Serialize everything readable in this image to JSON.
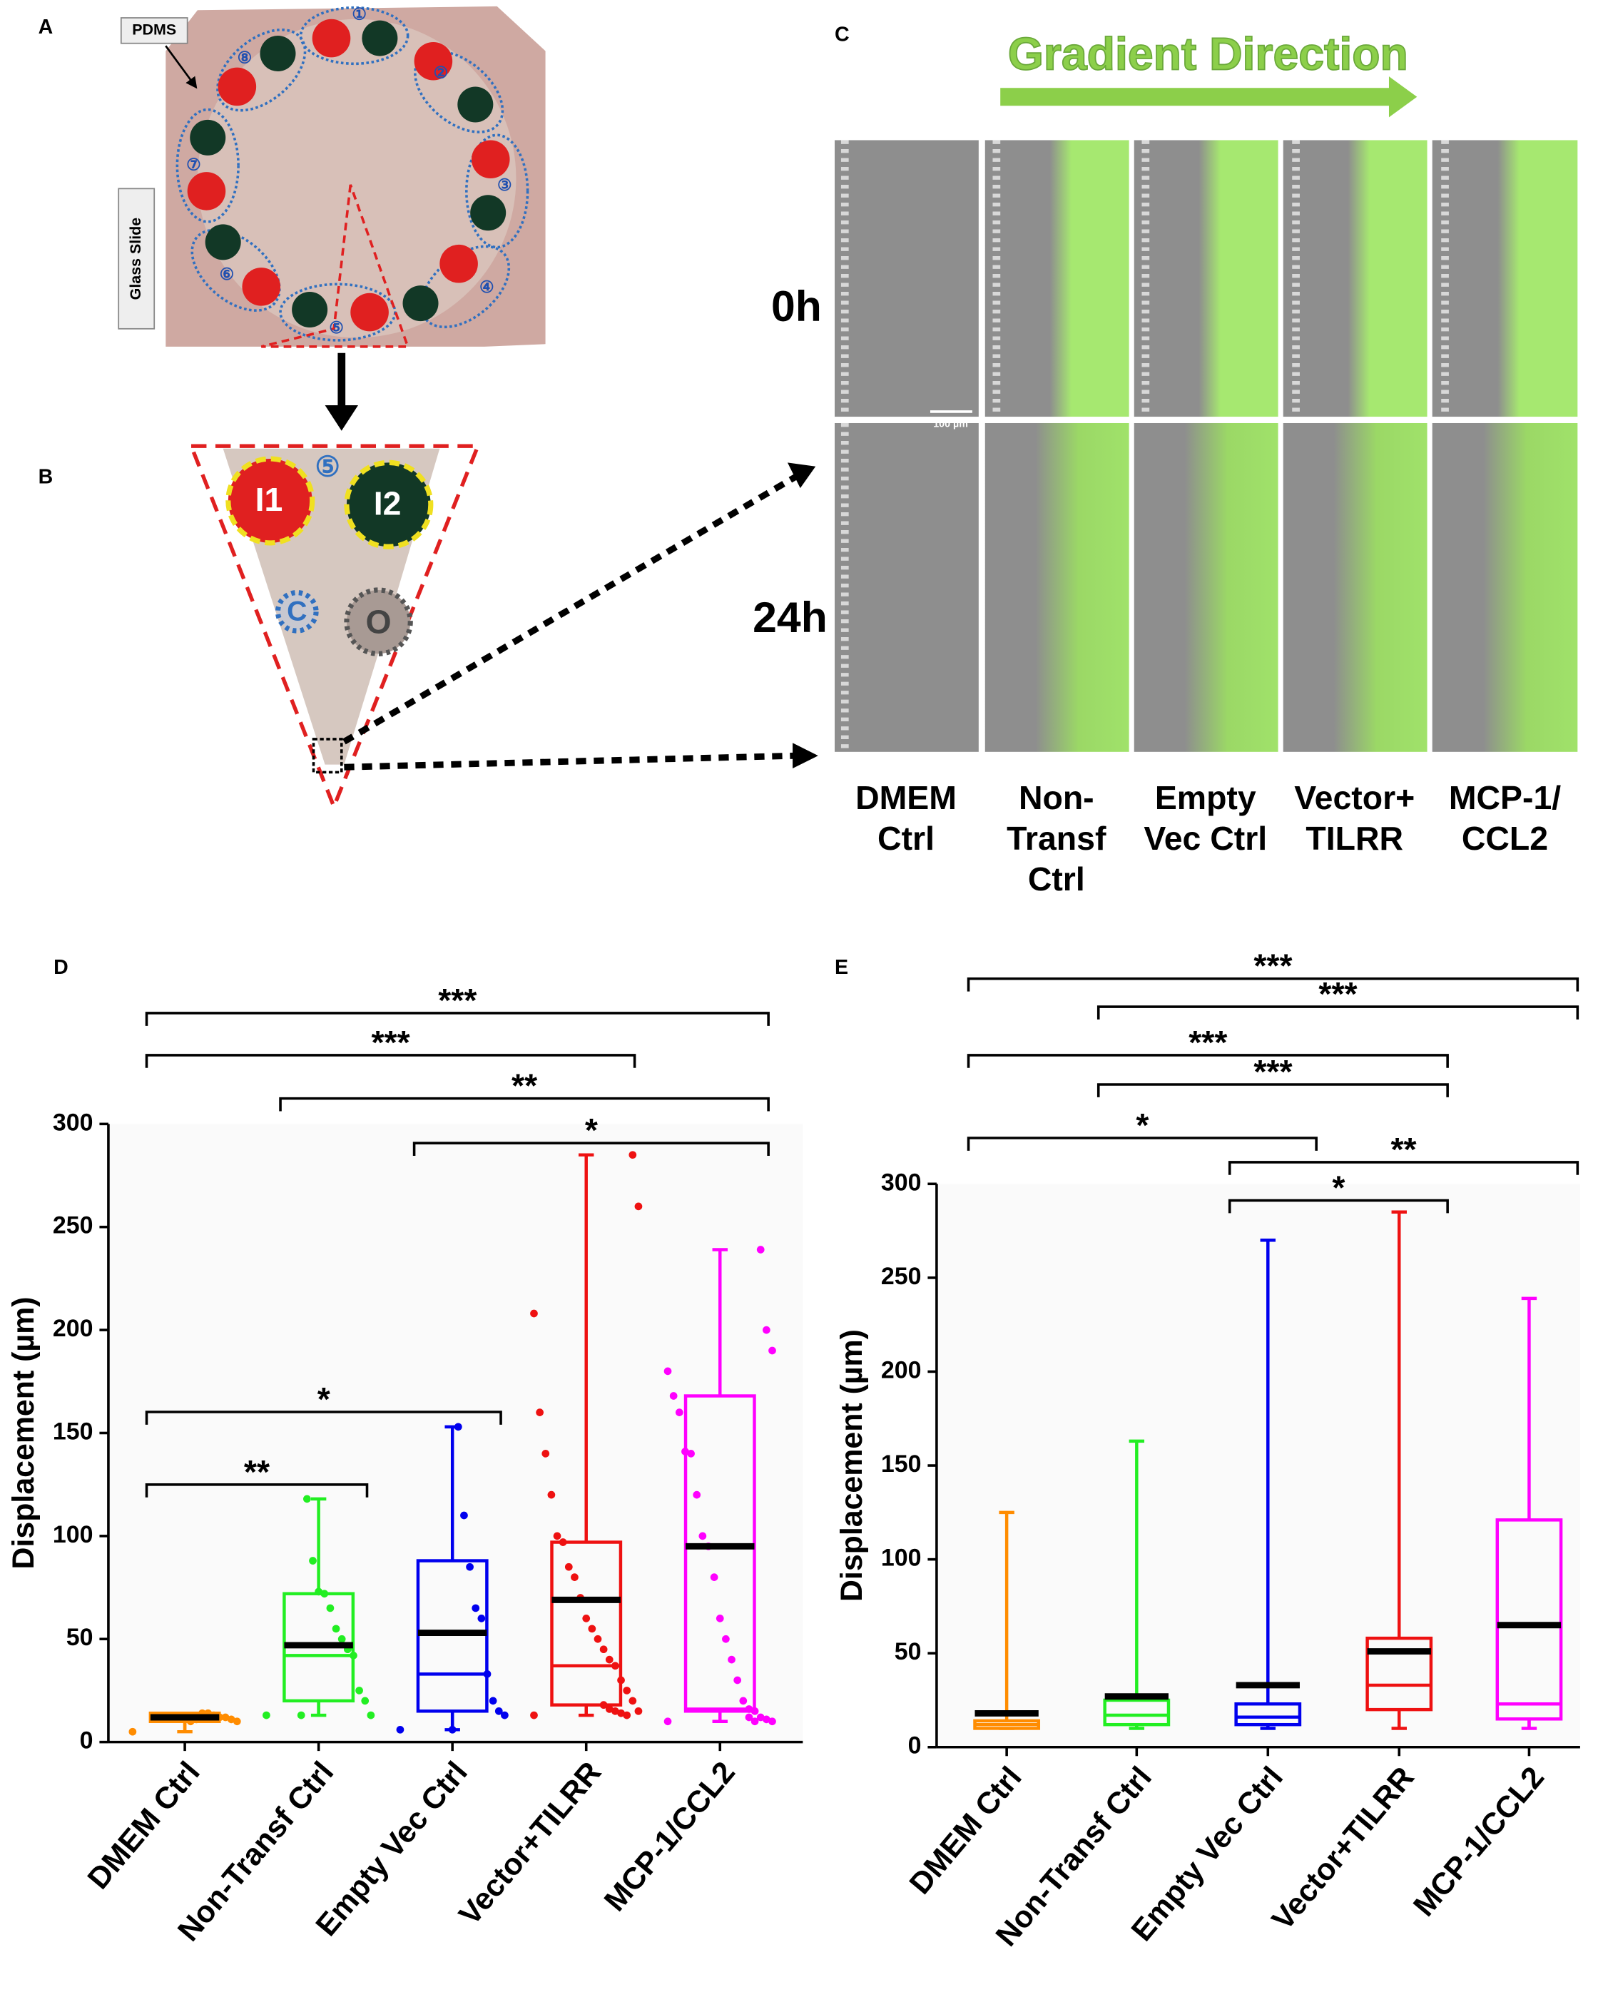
{
  "panels": {
    "A": {
      "letter": "A",
      "pdms": "PDMS",
      "glass": "Glass Slide",
      "wells": [
        "①",
        "②",
        "③",
        "④",
        "⑤",
        "⑥",
        "⑦",
        "⑧"
      ]
    },
    "B": {
      "letter": "B",
      "unit": "⑤",
      "inlets": [
        "I1",
        "I2"
      ],
      "control": "C",
      "outlet": "O"
    },
    "C": {
      "letter": "C",
      "gradient": "Gradient Direction",
      "times": [
        "0h",
        "24h"
      ],
      "scale": "100 µm",
      "columns": [
        [
          "DMEM",
          "Ctrl"
        ],
        [
          "Non-",
          "Transf",
          "Ctrl"
        ],
        [
          "Empty",
          "Vec Ctrl"
        ],
        [
          "Vector+",
          "TILRR"
        ],
        [
          "MCP-1/",
          "CCL2"
        ]
      ]
    }
  },
  "chart_data": [
    {
      "type": "box",
      "letter": "D",
      "ylabel": "Displacement (µm)",
      "categories": [
        "DMEM Ctrl",
        "Non-Transf Ctrl",
        "Empty Vec Ctrl",
        "Vector+TILRR",
        "MCP-1/CCL2"
      ],
      "colors": [
        "#ff8c00",
        "#22ee22",
        "#0000ee",
        "#ee1111",
        "#ff00ff"
      ],
      "ylim": [
        0,
        300
      ],
      "yticks": [
        0,
        50,
        100,
        150,
        200,
        250,
        300
      ],
      "boxes": [
        {
          "min": 5,
          "q1": 10,
          "median": 11,
          "q3": 14,
          "max": 14,
          "mean": 12,
          "points": [
            5,
            10,
            11,
            12,
            12,
            13,
            14,
            14,
            11,
            10
          ]
        },
        {
          "min": 13,
          "q1": 20,
          "median": 42,
          "q3": 72,
          "max": 118,
          "mean": 47,
          "points": [
            13,
            13,
            20,
            25,
            42,
            45,
            50,
            55,
            65,
            72,
            73,
            88,
            118,
            13
          ]
        },
        {
          "min": 6,
          "q1": 15,
          "median": 33,
          "q3": 88,
          "max": 153,
          "mean": 53,
          "points": [
            6,
            13,
            15,
            20,
            33,
            60,
            65,
            85,
            110,
            153,
            6
          ]
        },
        {
          "min": 13,
          "q1": 18,
          "median": 37,
          "q3": 97,
          "max": 285,
          "mean": 69,
          "points": [
            13,
            15,
            20,
            25,
            30,
            37,
            40,
            45,
            50,
            55,
            60,
            70,
            80,
            85,
            97,
            100,
            120,
            140,
            160,
            208,
            260,
            285,
            13,
            14,
            15,
            16,
            18
          ]
        },
        {
          "min": 10,
          "q1": 15,
          "median": 16,
          "q3": 168,
          "max": 239,
          "mean": 95,
          "points": [
            10,
            10,
            11,
            12,
            15,
            16,
            20,
            30,
            40,
            50,
            60,
            80,
            95,
            100,
            120,
            140,
            141,
            160,
            168,
            180,
            190,
            200,
            239,
            10,
            12
          ]
        }
      ],
      "significance": [
        {
          "from": 0,
          "to": 4,
          "label": "***"
        },
        {
          "from": 0,
          "to": 3,
          "label": "***"
        },
        {
          "from": 1,
          "to": 4,
          "label": "**"
        },
        {
          "from": 2,
          "to": 4,
          "label": "*"
        },
        {
          "from": 0,
          "to": 2,
          "label": "*"
        },
        {
          "from": 0,
          "to": 1,
          "label": "**"
        }
      ]
    },
    {
      "type": "box",
      "letter": "E",
      "ylabel": "Displacement (µm)",
      "categories": [
        "DMEM Ctrl",
        "Non-Transf Ctrl",
        "Empty Vec Ctrl",
        "Vector+TILRR",
        "MCP-1/CCL2"
      ],
      "colors": [
        "#ff8c00",
        "#22ee22",
        "#0000ee",
        "#ee1111",
        "#ff00ff"
      ],
      "ylim": [
        0,
        300
      ],
      "yticks": [
        0,
        50,
        100,
        150,
        200,
        250,
        300
      ],
      "boxes": [
        {
          "min": 10,
          "q1": 10,
          "median": 12,
          "q3": 14,
          "max": 125,
          "mean": 18
        },
        {
          "min": 10,
          "q1": 12,
          "median": 17,
          "q3": 25,
          "max": 163,
          "mean": 27
        },
        {
          "min": 10,
          "q1": 12,
          "median": 16,
          "q3": 23,
          "max": 270,
          "mean": 33
        },
        {
          "min": 10,
          "q1": 20,
          "median": 33,
          "q3": 58,
          "max": 285,
          "mean": 51
        },
        {
          "min": 10,
          "q1": 15,
          "median": 23,
          "q3": 121,
          "max": 239,
          "mean": 65
        }
      ],
      "significance": [
        {
          "from": 0,
          "to": 4,
          "label": "***"
        },
        {
          "from": 1,
          "to": 4,
          "label": "***"
        },
        {
          "from": 0,
          "to": 3,
          "label": "***"
        },
        {
          "from": 1,
          "to": 3,
          "label": "***"
        },
        {
          "from": 0,
          "to": 2,
          "label": "*"
        },
        {
          "from": 2,
          "to": 4,
          "label": "**"
        },
        {
          "from": 2,
          "to": 3,
          "label": "*"
        }
      ]
    }
  ]
}
